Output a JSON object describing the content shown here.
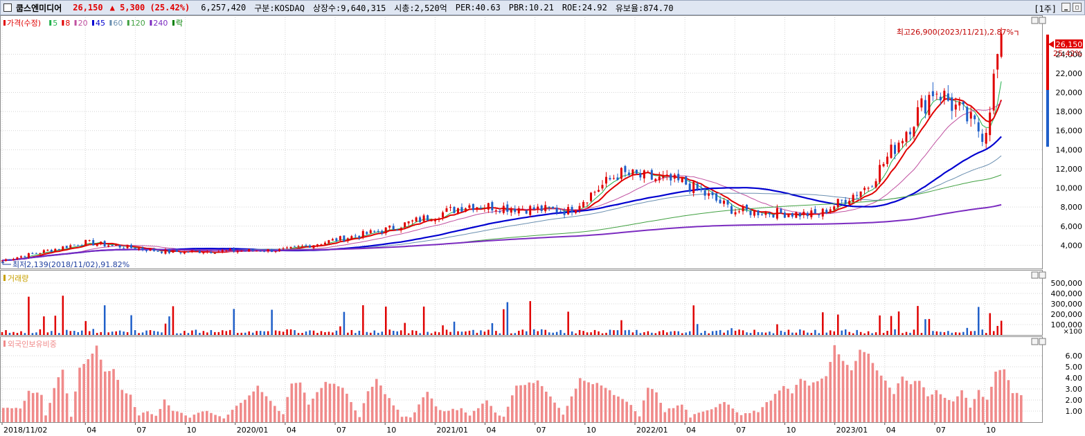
{
  "header": {
    "stock_name": "쿱스엔미디어",
    "price": "26,150",
    "change_arrow": "▲",
    "change": "5,300",
    "change_pct": "(25.42%)",
    "volume": "6,257,420",
    "market": "구분:KOSDAQ",
    "shares": "상장수:9,640,315",
    "market_cap": "시총:2,520억",
    "per": "PER:40.63",
    "pbr": "PBR:10.21",
    "roe": "ROE:24.92",
    "float": "유보율:874.70",
    "period": "[1주]"
  },
  "colors": {
    "up": "#e00000",
    "down": "#1f5fc9",
    "ma5": "#22b14c",
    "ma8": "#e00000",
    "ma20": "#c050a0",
    "ma45": "#0000d0",
    "ma60": "#6a8fb0",
    "ma120": "#40a040",
    "ma240": "#7b2bc0",
    "foreign": "#f08a8a"
  },
  "legend": {
    "price": [
      {
        "label": "가격(수정)",
        "color": "#e00000"
      },
      {
        "label": "5",
        "color": "#22b14c"
      },
      {
        "label": "8",
        "color": "#e00000"
      },
      {
        "label": "20",
        "color": "#c050a0"
      },
      {
        "label": "45",
        "color": "#0000d0"
      },
      {
        "label": "60",
        "color": "#6a8fb0"
      },
      {
        "label": "120",
        "color": "#40a040"
      },
      {
        "label": "240",
        "color": "#7b2bc0"
      },
      {
        "label": "락",
        "color": "#008000"
      }
    ],
    "volume": "거래량",
    "foreign": "외국인보유비중"
  },
  "annotations": {
    "high": "최고26,900(2023/11/21),2.87%",
    "low": "최저2,139(2018/11/02),91.82%",
    "last_price": "26,150",
    "last_pct": "25.42%",
    "volume_unit": "×100"
  },
  "chart_data": [
    {
      "type": "candlestick",
      "name": "price",
      "x_ticks": [
        "2018/11/02",
        "04",
        "07",
        "10",
        "2020/01",
        "04",
        "07",
        "10",
        "2021/01",
        "04",
        "07",
        "10",
        "2022/01",
        "04",
        "07",
        "10",
        "2023/01",
        "04",
        "07",
        "10"
      ],
      "y_ticks": [
        4000,
        6000,
        8000,
        10000,
        12000,
        14000,
        16000,
        18000,
        20000,
        22000,
        24000
      ],
      "ylim": [
        2000,
        27500
      ],
      "grid": true,
      "key_points": [
        {
          "date": "2018/11",
          "close": 2400
        },
        {
          "date": "2019/04",
          "close": 4300
        },
        {
          "date": "2019/09",
          "close": 3300
        },
        {
          "date": "2020/04",
          "close": 3500
        },
        {
          "date": "2020/10",
          "close": 5600
        },
        {
          "date": "2021/03",
          "close": 8200
        },
        {
          "date": "2021/09",
          "close": 7600
        },
        {
          "date": "2021/12",
          "close": 11500
        },
        {
          "date": "2022/04",
          "close": 10500
        },
        {
          "date": "2022/07",
          "close": 7600
        },
        {
          "date": "2022/12",
          "close": 7200
        },
        {
          "date": "2023/03",
          "close": 10200
        },
        {
          "date": "2023/07",
          "close": 20500
        },
        {
          "date": "2023/10",
          "close": 15500
        },
        {
          "date": "2023/11",
          "close": 26150
        }
      ]
    },
    {
      "type": "bar",
      "name": "volume",
      "y_ticks": [
        100000,
        200000,
        300000,
        400000,
        500000
      ],
      "ylim": [
        0,
        600000
      ],
      "unit": "×100"
    },
    {
      "type": "bar",
      "name": "foreign_ratio",
      "y_ticks": [
        1.0,
        2.0,
        3.0,
        4.0,
        5.0,
        6.0
      ],
      "ylim": [
        0,
        7.5
      ]
    }
  ]
}
